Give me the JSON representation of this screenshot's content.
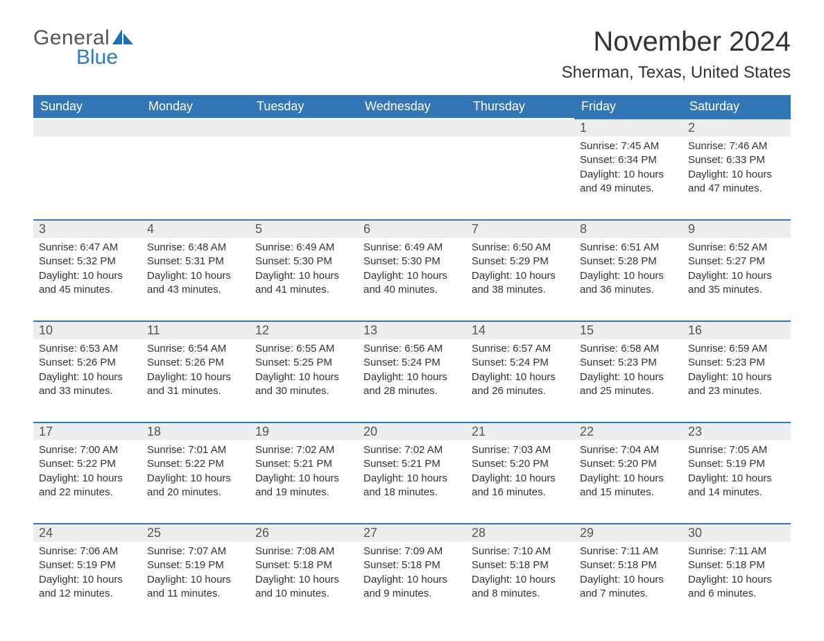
{
  "logo": {
    "word1": "General",
    "word2": "Blue",
    "sail_color": "#1b6fb5"
  },
  "title": {
    "month": "November 2024",
    "location": "Sherman, Texas, United States"
  },
  "colors": {
    "header_bg": "#3376b6",
    "header_text": "#ffffff",
    "daynum_bg": "#eceef0",
    "border": "#3376b6",
    "body_text": "#333333"
  },
  "day_headers": [
    "Sunday",
    "Monday",
    "Tuesday",
    "Wednesday",
    "Thursday",
    "Friday",
    "Saturday"
  ],
  "weeks": [
    [
      {
        "blank": true
      },
      {
        "blank": true
      },
      {
        "blank": true
      },
      {
        "blank": true
      },
      {
        "blank": true
      },
      {
        "num": "1",
        "sunrise": "7:45 AM",
        "sunset": "6:34 PM",
        "daylight_h": "10",
        "daylight_m": "49"
      },
      {
        "num": "2",
        "sunrise": "7:46 AM",
        "sunset": "6:33 PM",
        "daylight_h": "10",
        "daylight_m": "47"
      }
    ],
    [
      {
        "num": "3",
        "sunrise": "6:47 AM",
        "sunset": "5:32 PM",
        "daylight_h": "10",
        "daylight_m": "45"
      },
      {
        "num": "4",
        "sunrise": "6:48 AM",
        "sunset": "5:31 PM",
        "daylight_h": "10",
        "daylight_m": "43"
      },
      {
        "num": "5",
        "sunrise": "6:49 AM",
        "sunset": "5:30 PM",
        "daylight_h": "10",
        "daylight_m": "41"
      },
      {
        "num": "6",
        "sunrise": "6:49 AM",
        "sunset": "5:30 PM",
        "daylight_h": "10",
        "daylight_m": "40"
      },
      {
        "num": "7",
        "sunrise": "6:50 AM",
        "sunset": "5:29 PM",
        "daylight_h": "10",
        "daylight_m": "38"
      },
      {
        "num": "8",
        "sunrise": "6:51 AM",
        "sunset": "5:28 PM",
        "daylight_h": "10",
        "daylight_m": "36"
      },
      {
        "num": "9",
        "sunrise": "6:52 AM",
        "sunset": "5:27 PM",
        "daylight_h": "10",
        "daylight_m": "35"
      }
    ],
    [
      {
        "num": "10",
        "sunrise": "6:53 AM",
        "sunset": "5:26 PM",
        "daylight_h": "10",
        "daylight_m": "33"
      },
      {
        "num": "11",
        "sunrise": "6:54 AM",
        "sunset": "5:26 PM",
        "daylight_h": "10",
        "daylight_m": "31"
      },
      {
        "num": "12",
        "sunrise": "6:55 AM",
        "sunset": "5:25 PM",
        "daylight_h": "10",
        "daylight_m": "30"
      },
      {
        "num": "13",
        "sunrise": "6:56 AM",
        "sunset": "5:24 PM",
        "daylight_h": "10",
        "daylight_m": "28"
      },
      {
        "num": "14",
        "sunrise": "6:57 AM",
        "sunset": "5:24 PM",
        "daylight_h": "10",
        "daylight_m": "26"
      },
      {
        "num": "15",
        "sunrise": "6:58 AM",
        "sunset": "5:23 PM",
        "daylight_h": "10",
        "daylight_m": "25"
      },
      {
        "num": "16",
        "sunrise": "6:59 AM",
        "sunset": "5:23 PM",
        "daylight_h": "10",
        "daylight_m": "23"
      }
    ],
    [
      {
        "num": "17",
        "sunrise": "7:00 AM",
        "sunset": "5:22 PM",
        "daylight_h": "10",
        "daylight_m": "22"
      },
      {
        "num": "18",
        "sunrise": "7:01 AM",
        "sunset": "5:22 PM",
        "daylight_h": "10",
        "daylight_m": "20"
      },
      {
        "num": "19",
        "sunrise": "7:02 AM",
        "sunset": "5:21 PM",
        "daylight_h": "10",
        "daylight_m": "19"
      },
      {
        "num": "20",
        "sunrise": "7:02 AM",
        "sunset": "5:21 PM",
        "daylight_h": "10",
        "daylight_m": "18"
      },
      {
        "num": "21",
        "sunrise": "7:03 AM",
        "sunset": "5:20 PM",
        "daylight_h": "10",
        "daylight_m": "16"
      },
      {
        "num": "22",
        "sunrise": "7:04 AM",
        "sunset": "5:20 PM",
        "daylight_h": "10",
        "daylight_m": "15"
      },
      {
        "num": "23",
        "sunrise": "7:05 AM",
        "sunset": "5:19 PM",
        "daylight_h": "10",
        "daylight_m": "14"
      }
    ],
    [
      {
        "num": "24",
        "sunrise": "7:06 AM",
        "sunset": "5:19 PM",
        "daylight_h": "10",
        "daylight_m": "12"
      },
      {
        "num": "25",
        "sunrise": "7:07 AM",
        "sunset": "5:19 PM",
        "daylight_h": "10",
        "daylight_m": "11"
      },
      {
        "num": "26",
        "sunrise": "7:08 AM",
        "sunset": "5:18 PM",
        "daylight_h": "10",
        "daylight_m": "10"
      },
      {
        "num": "27",
        "sunrise": "7:09 AM",
        "sunset": "5:18 PM",
        "daylight_h": "10",
        "daylight_m": "9"
      },
      {
        "num": "28",
        "sunrise": "7:10 AM",
        "sunset": "5:18 PM",
        "daylight_h": "10",
        "daylight_m": "8"
      },
      {
        "num": "29",
        "sunrise": "7:11 AM",
        "sunset": "5:18 PM",
        "daylight_h": "10",
        "daylight_m": "7"
      },
      {
        "num": "30",
        "sunrise": "7:11 AM",
        "sunset": "5:18 PM",
        "daylight_h": "10",
        "daylight_m": "6"
      }
    ]
  ],
  "labels": {
    "sunrise_prefix": "Sunrise: ",
    "sunset_prefix": "Sunset: ",
    "daylight_tpl_1": "Daylight: ",
    "daylight_tpl_2": " hours",
    "daylight_tpl_3": "and ",
    "daylight_tpl_4": " minutes."
  }
}
